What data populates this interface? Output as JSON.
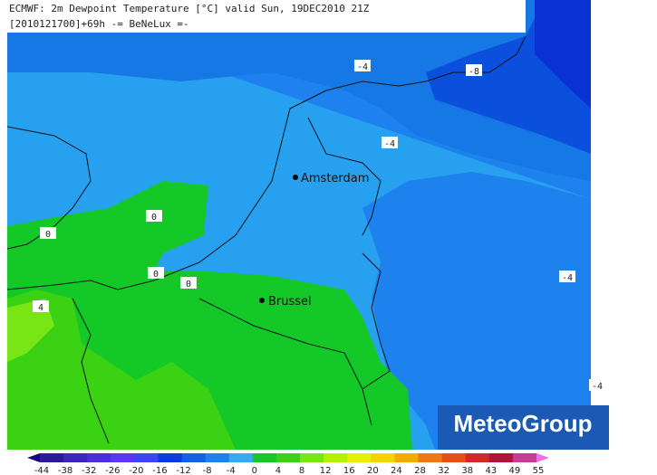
{
  "header": {
    "line1": "ECMWF: 2m Dewpoint Temperature [°C] valid Sun, 19DEC2010 21Z",
    "line2": "[2010121700]+69h -= BeNeLux =-"
  },
  "cities": [
    {
      "label": "Amsterdam"
    },
    {
      "label": "Brussel"
    }
  ],
  "contour_labels": [
    "-4",
    "-8",
    "-4",
    "0",
    "0",
    "0",
    "0",
    "4",
    "-4",
    "-4"
  ],
  "colorbar": {
    "ticks": [
      "-44",
      "-38",
      "-32",
      "-26",
      "-20",
      "-16",
      "-12",
      "-8",
      "-4",
      "0",
      "4",
      "8",
      "12",
      "16",
      "20",
      "24",
      "28",
      "32",
      "38",
      "43",
      "49",
      "55"
    ],
    "colors": [
      "#1a0080",
      "#2a1aa0",
      "#3a28c0",
      "#4a30dc",
      "#5a38f0",
      "#3c46f0",
      "#0a3cdc",
      "#1460e6",
      "#1e82ee",
      "#32aaf4",
      "#14c828",
      "#3cd214",
      "#78e614",
      "#b4f00a",
      "#e6f00a",
      "#f5d20a",
      "#f5aa0a",
      "#f07814",
      "#e65014",
      "#d22828",
      "#b4143c",
      "#c83c96",
      "#f06ee6"
    ]
  },
  "logo": "MeteoGroup"
}
